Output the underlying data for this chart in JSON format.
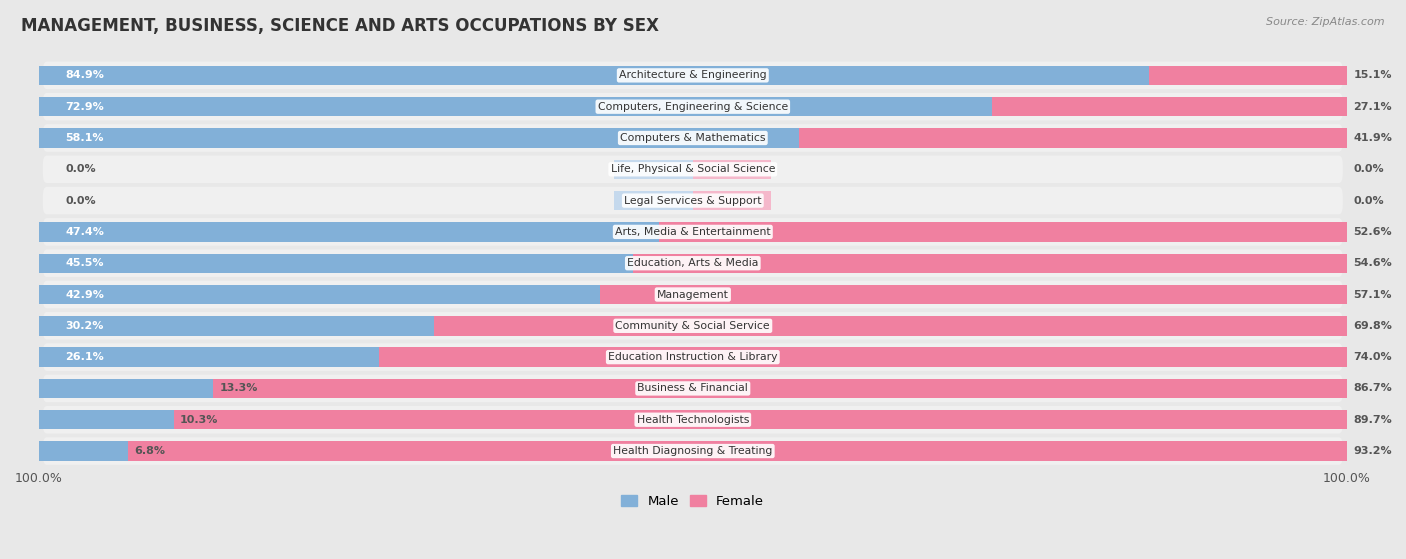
{
  "title": "MANAGEMENT, BUSINESS, SCIENCE AND ARTS OCCUPATIONS BY SEX",
  "source": "Source: ZipAtlas.com",
  "categories": [
    "Architecture & Engineering",
    "Computers, Engineering & Science",
    "Computers & Mathematics",
    "Life, Physical & Social Science",
    "Legal Services & Support",
    "Arts, Media & Entertainment",
    "Education, Arts & Media",
    "Management",
    "Community & Social Service",
    "Education Instruction & Library",
    "Business & Financial",
    "Health Technologists",
    "Health Diagnosing & Treating"
  ],
  "male_pct": [
    84.9,
    72.9,
    58.1,
    0.0,
    0.0,
    47.4,
    45.5,
    42.9,
    30.2,
    26.1,
    13.3,
    10.3,
    6.8
  ],
  "female_pct": [
    15.1,
    27.1,
    41.9,
    0.0,
    0.0,
    52.6,
    54.6,
    57.1,
    69.8,
    74.0,
    86.7,
    89.7,
    93.2
  ],
  "male_color": "#82b0d8",
  "female_color": "#f080a0",
  "male_color_zero": "#c5d9ed",
  "female_color_zero": "#f5b8cb",
  "row_color_odd": "#ebebeb",
  "row_color_even": "#f7f7f7",
  "bg_color": "#e8e8e8",
  "legend_male_color": "#82b0d8",
  "legend_female_color": "#f080a0"
}
